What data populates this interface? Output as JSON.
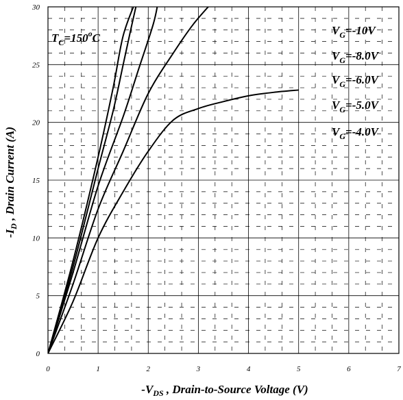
{
  "chart_data": {
    "type": "line",
    "title": "",
    "xlabel": {
      "prefix": "-V",
      "sub": "DS",
      "rest": " , Drain-to-Source Voltage (V)"
    },
    "ylabel": {
      "prefix": "-I",
      "sub": "D",
      "rest": " , Drain Current (A)"
    },
    "xlim": [
      0,
      7
    ],
    "ylim": [
      0,
      30
    ],
    "x_ticks": [
      "0",
      "1",
      "2",
      "3",
      "4",
      "5",
      "6",
      "7"
    ],
    "y_ticks": [
      "0",
      "5",
      "10",
      "15",
      "20",
      "25",
      "30"
    ],
    "grid": true,
    "annotation": {
      "prefix": "T",
      "sub": "C",
      "rest": "=150",
      "sup": "o",
      "unit": "C"
    },
    "series": [
      {
        "name": "V_G=-10V",
        "label": {
          "prefix": "V",
          "sub": "G",
          "rest": "=-10V"
        },
        "points": [
          [
            0,
            0
          ],
          [
            0.5,
            8
          ],
          [
            1.0,
            17
          ],
          [
            1.3,
            23
          ],
          [
            1.5,
            27.5
          ],
          [
            1.75,
            30.5
          ]
        ]
      },
      {
        "name": "V_G=-8.0V",
        "label": {
          "prefix": "V",
          "sub": "G",
          "rest": "=-8.0V"
        },
        "points": [
          [
            0,
            0
          ],
          [
            0.5,
            7.5
          ],
          [
            1.0,
            16
          ],
          [
            1.3,
            21
          ],
          [
            1.5,
            25
          ],
          [
            1.65,
            28
          ],
          [
            1.78,
            30.5
          ]
        ]
      },
      {
        "name": "V_G=-6.0V",
        "label": {
          "prefix": "V",
          "sub": "G",
          "rest": "=-6.0V"
        },
        "points": [
          [
            0,
            0
          ],
          [
            0.5,
            7
          ],
          [
            1.0,
            14.5
          ],
          [
            1.5,
            20.5
          ],
          [
            1.8,
            24.5
          ],
          [
            2.1,
            28.5
          ],
          [
            2.2,
            30.5
          ]
        ]
      },
      {
        "name": "V_G=-5.0V",
        "label": {
          "prefix": "V",
          "sub": "G",
          "rest": "=-5.0V"
        },
        "points": [
          [
            0,
            0
          ],
          [
            0.5,
            6
          ],
          [
            1.0,
            12.5
          ],
          [
            1.5,
            17.5
          ],
          [
            2.0,
            22.5
          ],
          [
            2.5,
            26
          ],
          [
            2.9,
            28.5
          ],
          [
            3.3,
            30.5
          ]
        ]
      },
      {
        "name": "V_G=-4.0V",
        "label": {
          "prefix": "V",
          "sub": "G",
          "rest": "=-4.0V"
        },
        "points": [
          [
            0,
            0
          ],
          [
            0.5,
            4.5
          ],
          [
            1.0,
            10
          ],
          [
            1.5,
            14
          ],
          [
            2.0,
            17.5
          ],
          [
            2.5,
            20.2
          ],
          [
            3.0,
            21.2
          ],
          [
            3.5,
            21.8
          ],
          [
            4.0,
            22.3
          ],
          [
            4.5,
            22.6
          ],
          [
            5.0,
            22.8
          ]
        ]
      }
    ]
  }
}
